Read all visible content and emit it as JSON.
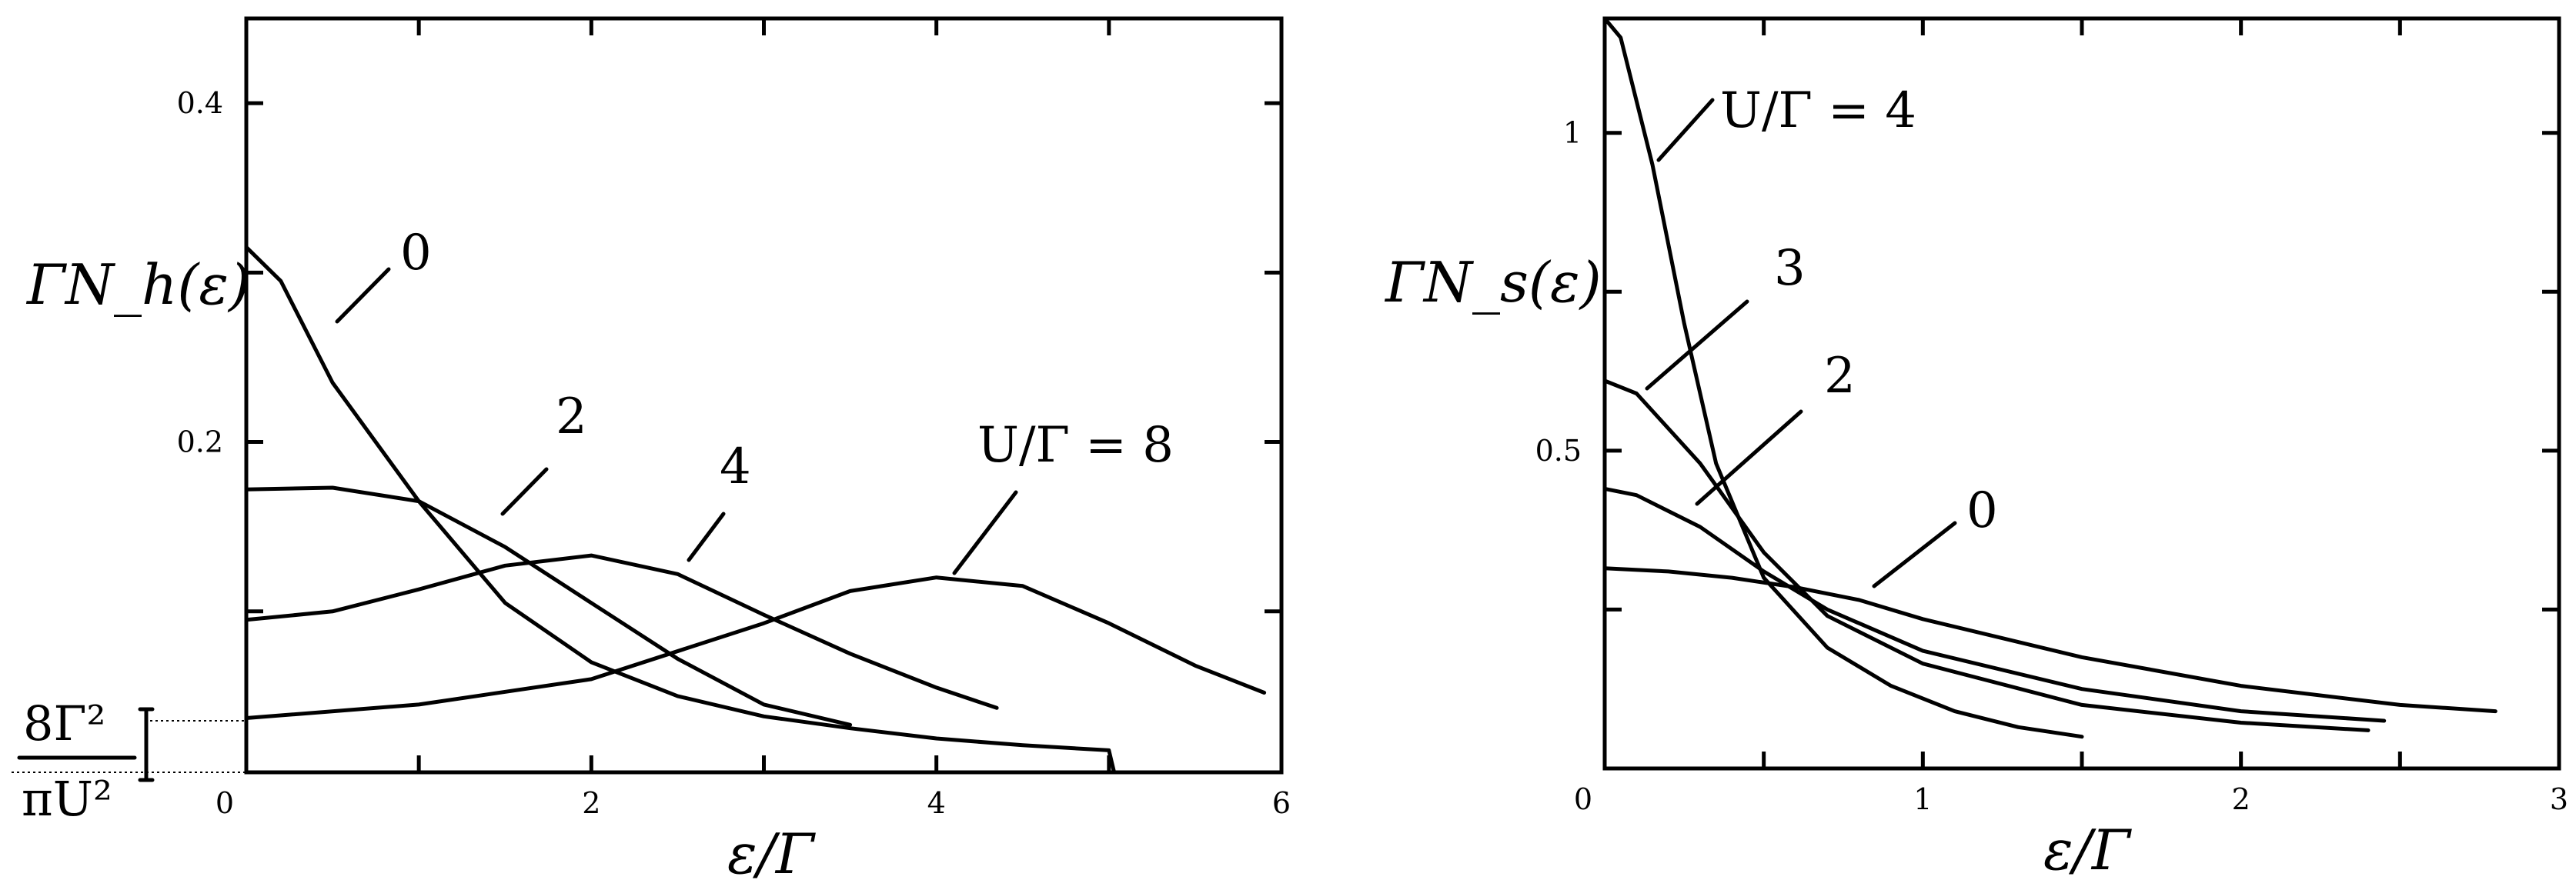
{
  "chart_data": [
    {
      "type": "line",
      "ylabel": "ΓN_h(ε)",
      "xlabel": "ε/Γ",
      "xlim": [
        0,
        6
      ],
      "ylim": [
        0.005,
        0.45
      ],
      "x_ticks": [
        0,
        1,
        2,
        3,
        4,
        5,
        6
      ],
      "x_tick_labels": [
        "0",
        "",
        "2",
        "",
        "4",
        "",
        "6"
      ],
      "y_ticks": [
        0.1,
        0.2,
        0.3,
        0.4
      ],
      "y_tick_labels": [
        "",
        "0.2",
        "",
        "0.4"
      ],
      "floor_annotation": {
        "numerator": "8Γ²",
        "denominator": "πU²"
      },
      "series": [
        {
          "label": "0",
          "x": [
            0,
            0.2,
            0.5,
            1.0,
            1.5,
            2.0,
            2.5,
            3.0,
            3.5,
            4.0,
            4.5,
            5.0,
            5.03
          ],
          "values": [
            0.315,
            0.295,
            0.235,
            0.165,
            0.105,
            0.07,
            0.05,
            0.038,
            0.031,
            0.025,
            0.021,
            0.018,
            0.005
          ]
        },
        {
          "label": "2",
          "x": [
            0,
            0.5,
            1.0,
            1.5,
            2.0,
            2.5,
            3.0,
            3.5
          ],
          "values": [
            0.172,
            0.173,
            0.165,
            0.138,
            0.105,
            0.072,
            0.045,
            0.033
          ]
        },
        {
          "label": "4",
          "x": [
            0,
            0.5,
            1.0,
            1.5,
            2.0,
            2.5,
            3.0,
            3.5,
            4.0,
            4.35
          ],
          "values": [
            0.095,
            0.1,
            0.113,
            0.127,
            0.133,
            0.122,
            0.098,
            0.075,
            0.055,
            0.043
          ]
        },
        {
          "label": "U/Γ = 8",
          "x": [
            0,
            1.0,
            2.0,
            3.0,
            3.5,
            4.0,
            4.5,
            5.0,
            5.5,
            5.9
          ],
          "values": [
            0.037,
            0.045,
            0.06,
            0.093,
            0.112,
            0.12,
            0.115,
            0.093,
            0.068,
            0.052
          ]
        }
      ]
    },
    {
      "type": "line",
      "ylabel": "ΓN_s(ε)",
      "xlabel": "ε/Γ",
      "xlim": [
        0,
        3
      ],
      "ylim": [
        0,
        1.18
      ],
      "x_ticks": [
        0,
        0.5,
        1,
        1.5,
        2,
        2.5,
        3
      ],
      "x_tick_labels": [
        "0",
        "",
        "1",
        "",
        "2",
        "",
        "3"
      ],
      "y_ticks": [
        0.25,
        0.5,
        0.75,
        1.0
      ],
      "y_tick_labels": [
        "",
        "0.5",
        "",
        "1"
      ],
      "series": [
        {
          "label": "U/Γ = 4",
          "x": [
            0,
            0.05,
            0.15,
            0.25,
            0.35,
            0.5,
            0.7,
            0.9,
            1.1,
            1.3,
            1.5
          ],
          "values": [
            1.18,
            1.15,
            0.95,
            0.7,
            0.48,
            0.3,
            0.19,
            0.13,
            0.09,
            0.065,
            0.05
          ]
        },
        {
          "label": "3",
          "x": [
            0,
            0.1,
            0.3,
            0.5,
            0.7,
            1.0,
            1.5,
            2.0,
            2.4
          ],
          "values": [
            0.61,
            0.59,
            0.48,
            0.34,
            0.24,
            0.165,
            0.1,
            0.072,
            0.06
          ]
        },
        {
          "label": "2",
          "x": [
            0,
            0.1,
            0.3,
            0.5,
            0.7,
            1.0,
            1.5,
            2.0,
            2.45
          ],
          "values": [
            0.44,
            0.43,
            0.38,
            0.31,
            0.25,
            0.185,
            0.125,
            0.09,
            0.075
          ]
        },
        {
          "label": "0",
          "x": [
            0,
            0.2,
            0.4,
            0.6,
            0.8,
            1.0,
            1.5,
            2.0,
            2.5,
            2.8
          ],
          "values": [
            0.315,
            0.31,
            0.3,
            0.285,
            0.265,
            0.235,
            0.175,
            0.13,
            0.1,
            0.09
          ]
        }
      ]
    }
  ]
}
